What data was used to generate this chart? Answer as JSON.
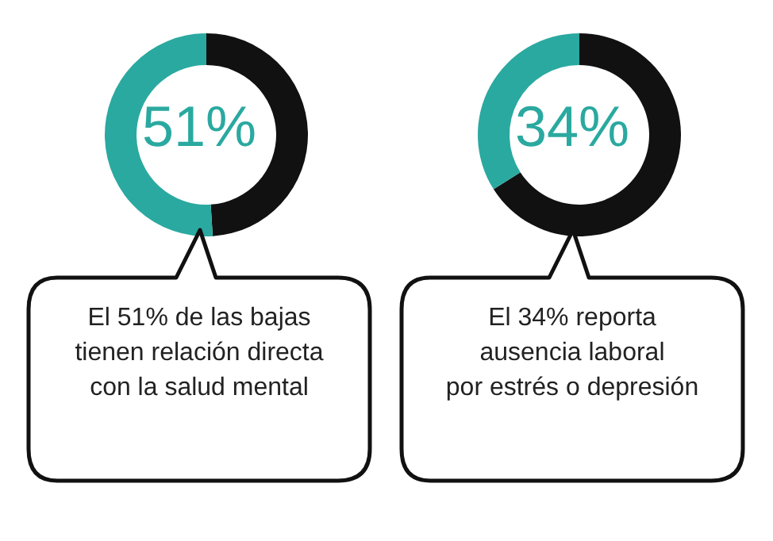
{
  "chart_data": [
    {
      "type": "donut",
      "categories": [
        null,
        null
      ],
      "values": [
        49,
        51
      ],
      "colors": [
        "#111111",
        "#2aa9a0"
      ],
      "value_labels": [
        null,
        "51%"
      ],
      "annotations": [
        "El 51% de las bajas\ntienen relación directa\ncon la salud mental"
      ]
    },
    {
      "type": "donut",
      "categories": [
        null,
        null
      ],
      "values": [
        66,
        34
      ],
      "colors": [
        "#111111",
        "#2aa9a0"
      ],
      "value_labels": [
        null,
        "34%"
      ],
      "annotations": [
        "El 34% reporta\nausencia laboral\npor estrés o depresión"
      ]
    }
  ]
}
